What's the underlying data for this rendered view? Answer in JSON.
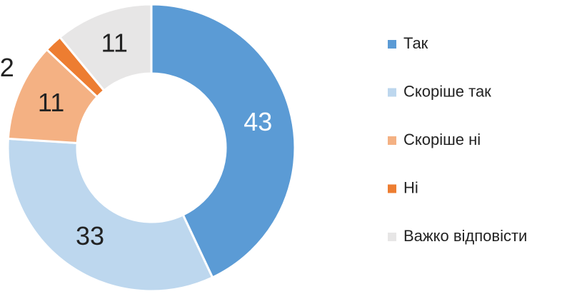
{
  "chart_data": {
    "type": "donut",
    "categories": [
      "Так",
      "Скоріше так",
      "Скоріше ні",
      "Ні",
      "Важко відповісти"
    ],
    "values": [
      43,
      33,
      11,
      2,
      11
    ],
    "colors": [
      "#5b9bd5",
      "#bdd7ee",
      "#f4b183",
      "#ed7d31",
      "#e7e6e6"
    ],
    "legend": "right"
  }
}
